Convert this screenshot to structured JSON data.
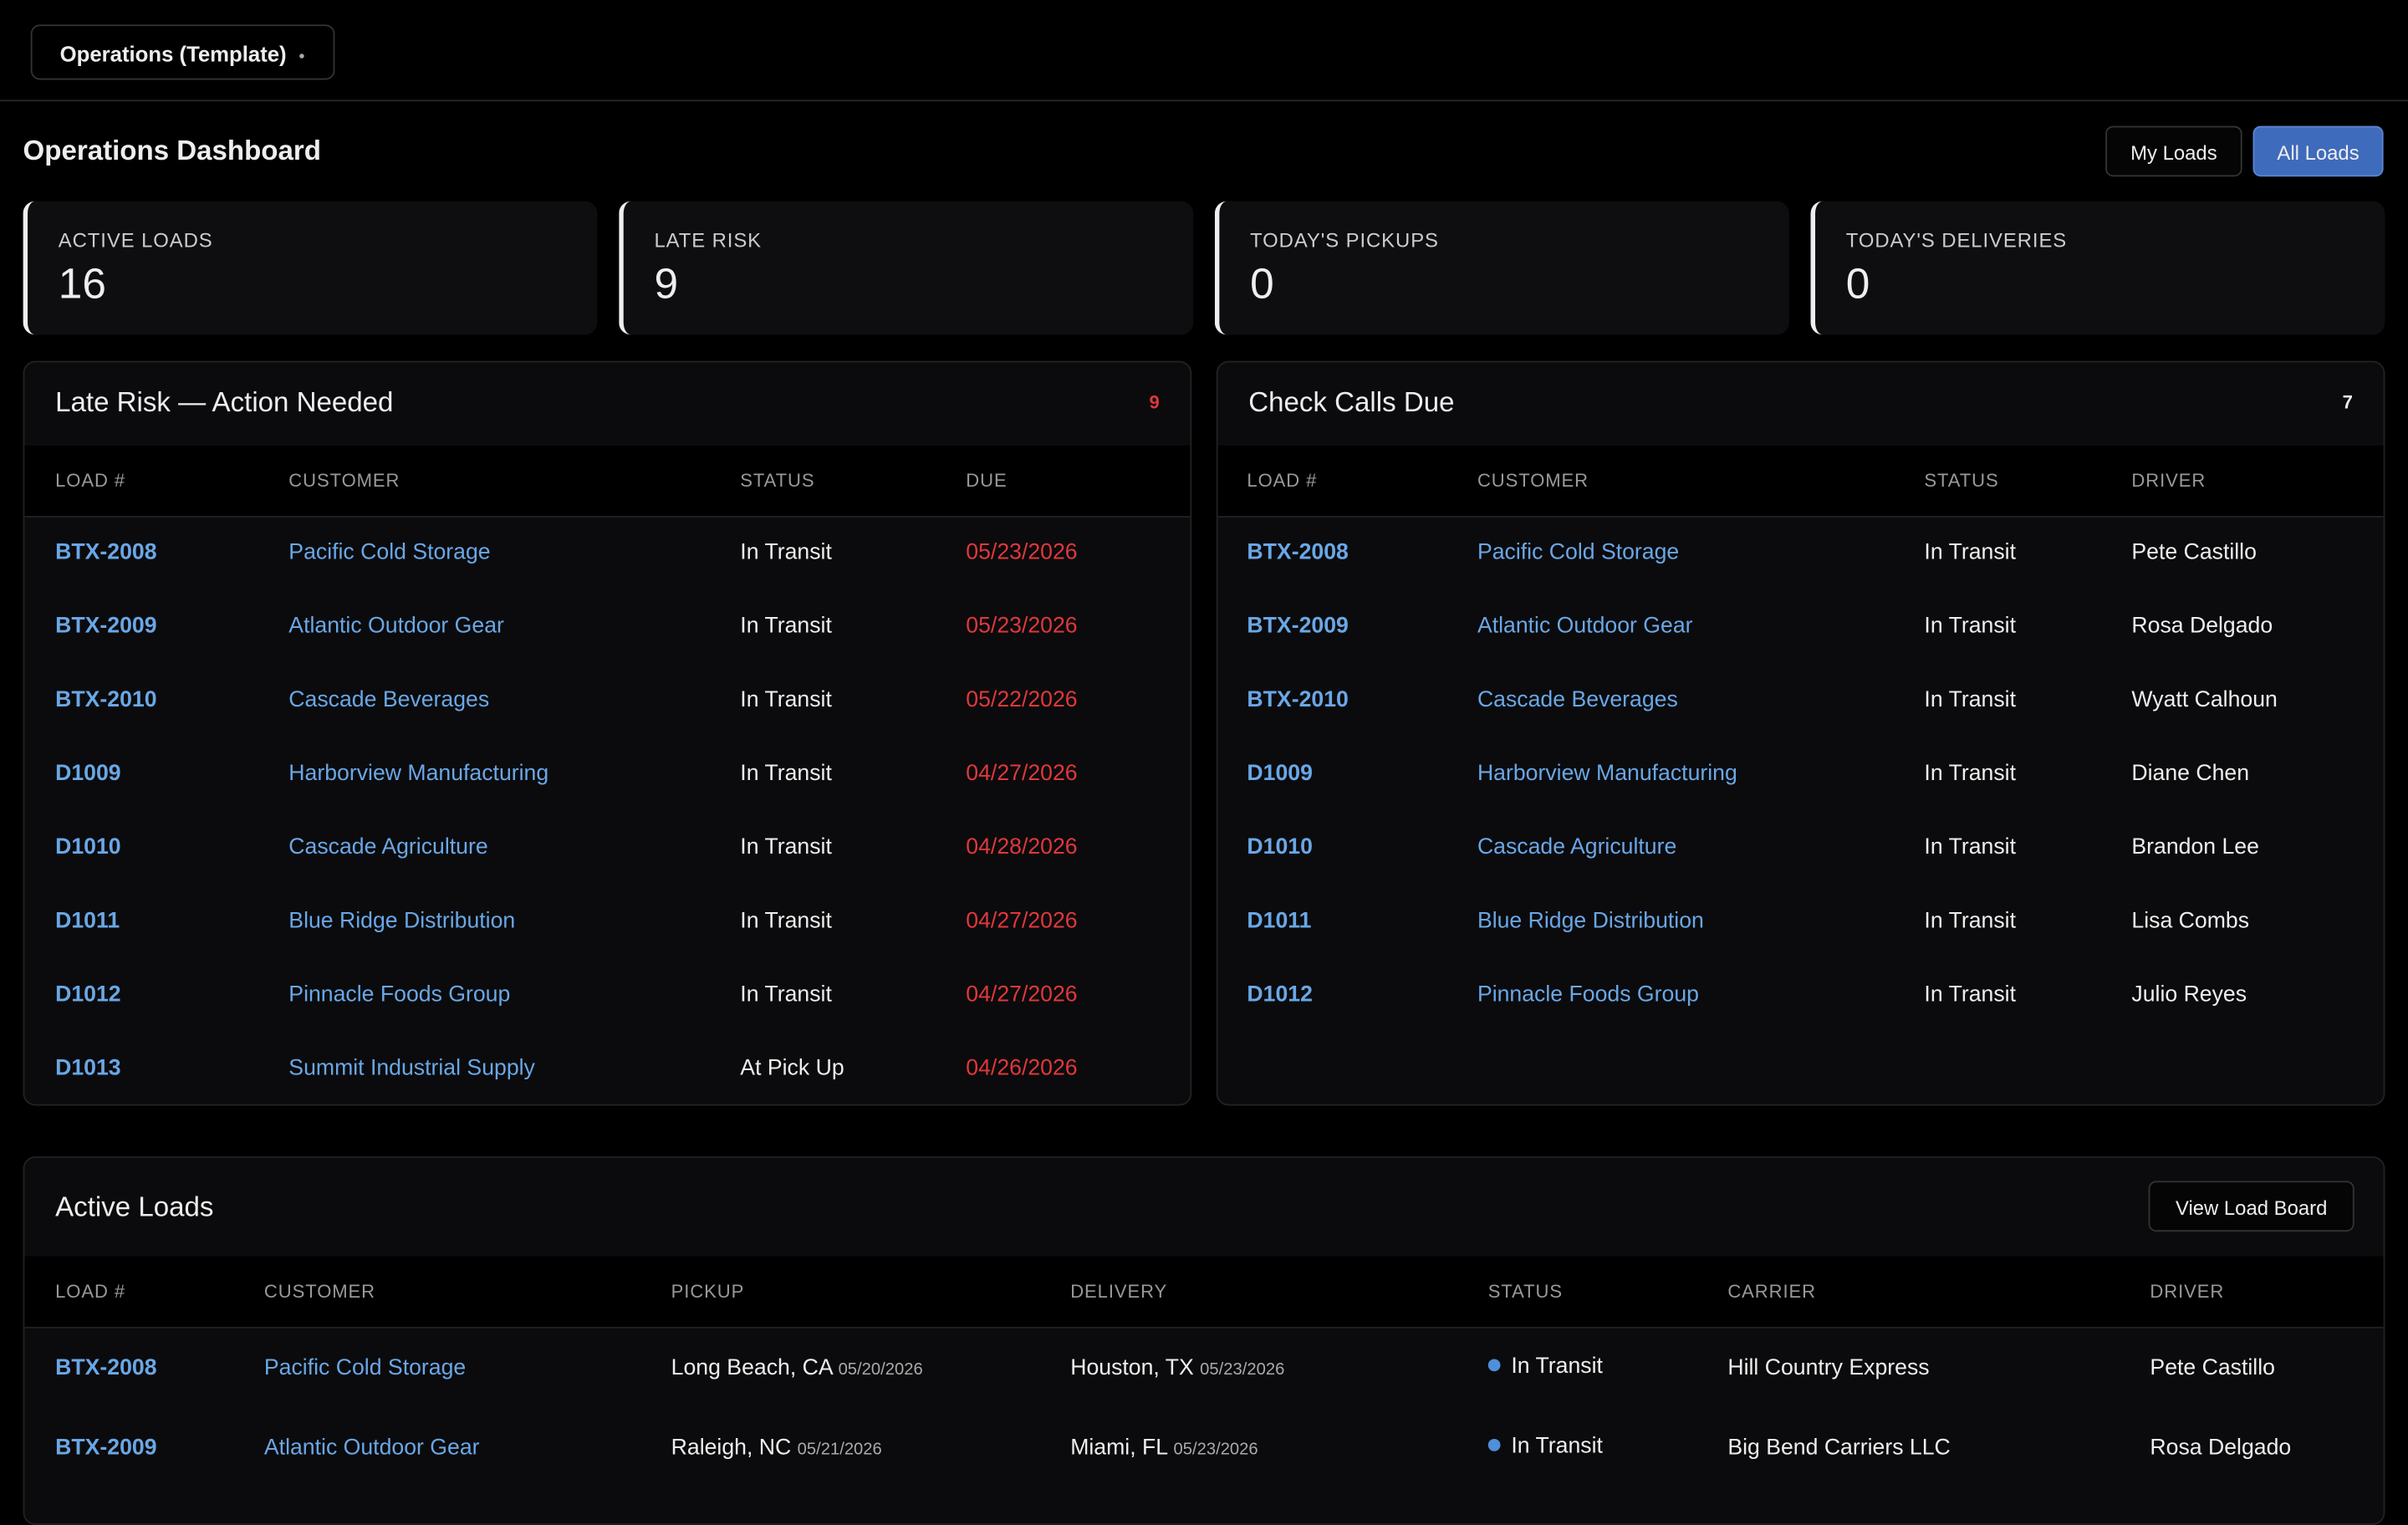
{
  "header": {
    "workspace": "Operations (Template)"
  },
  "dashboard": {
    "title": "Operations Dashboard",
    "buttons": [
      "My Loads",
      "All Loads"
    ]
  },
  "kpis": [
    {
      "label": "ACTIVE LOADS",
      "value": "16"
    },
    {
      "label": "LATE RISK",
      "value": "9"
    },
    {
      "label": "TODAY'S PICKUPS",
      "value": "0"
    },
    {
      "label": "TODAY'S DELIVERIES",
      "value": "0"
    }
  ],
  "late_risk": {
    "title": "Late Risk — Action Needed",
    "count": "9",
    "columns": [
      "LOAD #",
      "CUSTOMER",
      "STATUS",
      "DUE"
    ],
    "rows": [
      [
        "BTX-2008",
        "Pacific Cold Storage",
        "In Transit",
        "05/23/2026"
      ],
      [
        "BTX-2009",
        "Atlantic Outdoor Gear",
        "In Transit",
        "05/23/2026"
      ],
      [
        "BTX-2010",
        "Cascade Beverages",
        "In Transit",
        "05/22/2026"
      ],
      [
        "D1009",
        "Harborview Manufacturing",
        "In Transit",
        "04/27/2026"
      ],
      [
        "D1010",
        "Cascade Agriculture",
        "In Transit",
        "04/28/2026"
      ],
      [
        "D1011",
        "Blue Ridge Distribution",
        "In Transit",
        "04/27/2026"
      ],
      [
        "D1012",
        "Pinnacle Foods Group",
        "In Transit",
        "04/27/2026"
      ],
      [
        "D1013",
        "Summit Industrial Supply",
        "At Pick Up",
        "04/26/2026"
      ]
    ]
  },
  "check_calls": {
    "title": "Check Calls Due",
    "count": "7",
    "columns": [
      "LOAD #",
      "CUSTOMER",
      "STATUS",
      "DRIVER"
    ],
    "rows": [
      [
        "BTX-2008",
        "Pacific Cold Storage",
        "In Transit",
        "Pete Castillo"
      ],
      [
        "BTX-2009",
        "Atlantic Outdoor Gear",
        "In Transit",
        "Rosa Delgado"
      ],
      [
        "BTX-2010",
        "Cascade Beverages",
        "In Transit",
        "Wyatt Calhoun"
      ],
      [
        "D1009",
        "Harborview Manufacturing",
        "In Transit",
        "Diane Chen"
      ],
      [
        "D1010",
        "Cascade Agriculture",
        "In Transit",
        "Brandon Lee"
      ],
      [
        "D1011",
        "Blue Ridge Distribution",
        "In Transit",
        "Lisa Combs"
      ],
      [
        "D1012",
        "Pinnacle Foods Group",
        "In Transit",
        "Julio Reyes"
      ]
    ]
  },
  "active_loads": {
    "title": "Active Loads",
    "button": "View Load Board",
    "columns": [
      "LOAD #",
      "CUSTOMER",
      "PICKUP",
      "DELIVERY",
      "STATUS",
      "CARRIER",
      "DRIVER"
    ],
    "rows": [
      [
        "BTX-2008",
        "Pacific Cold Storage",
        [
          "Long Beach, CA",
          "05/20/2026"
        ],
        [
          "Houston, TX",
          "05/23/2026"
        ],
        "In Transit",
        "Hill Country Express",
        "Pete Castillo"
      ],
      [
        "BTX-2009",
        "Atlantic Outdoor Gear",
        [
          "Raleigh, NC",
          "05/21/2026"
        ],
        [
          "Miami, FL",
          "05/23/2026"
        ],
        "In Transit",
        "Big Bend Carriers LLC",
        "Rosa Delgado"
      ]
    ]
  }
}
